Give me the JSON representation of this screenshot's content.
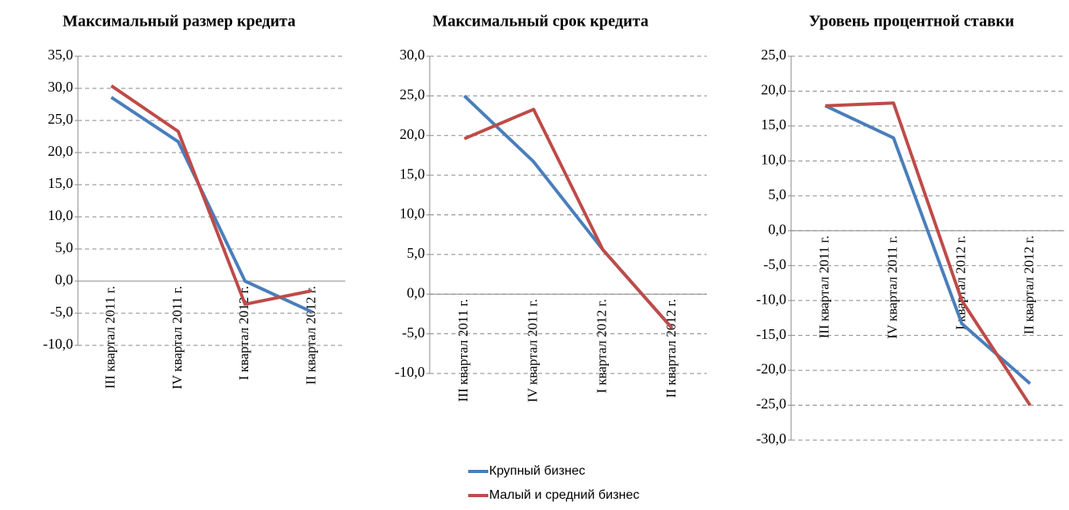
{
  "chart_data": [
    {
      "type": "line",
      "title": "Максимальный размер кредита",
      "categories": [
        "III  квартал 2011 г.",
        "IV квартал 2011 г.",
        "I квартал 2012 г.",
        "II квартал 2012 г."
      ],
      "series": [
        {
          "values": [
            28.6,
            21.7,
            0,
            -4.8
          ]
        },
        {
          "values": [
            30.4,
            23.3,
            -3.6,
            -1.5
          ]
        }
      ],
      "ylim": [
        -10,
        35
      ],
      "yticks": [
        {
          "value": -10,
          "label": "-10,0"
        },
        {
          "value": -5,
          "label": "-5,0"
        },
        {
          "value": 0,
          "label": "0,0"
        },
        {
          "value": 5,
          "label": "5,0"
        },
        {
          "value": 10,
          "label": "10,0"
        },
        {
          "value": 15,
          "label": "15,0"
        },
        {
          "value": 20,
          "label": "20,0"
        },
        {
          "value": 25,
          "label": "25,0"
        },
        {
          "value": 30,
          "label": "30,0"
        },
        {
          "value": 35,
          "label": "35,0"
        }
      ],
      "grid": true
    },
    {
      "type": "line",
      "title": "Максимальный срок кредита",
      "categories": [
        "III  квартал 2011 г.",
        "IV квартал 2011 г.",
        "I квартал 2012 г.",
        "II квартал 2012 г."
      ],
      "series": [
        {
          "values": [
            25.0,
            16.7,
            5.6,
            -4.3
          ]
        },
        {
          "values": [
            19.6,
            23.3,
            5.6,
            -4.3
          ]
        }
      ],
      "ylim": [
        -10,
        30
      ],
      "yticks": [
        {
          "value": -10,
          "label": "-10,0"
        },
        {
          "value": -5,
          "label": "-5,0"
        },
        {
          "value": 0,
          "label": "0,0"
        },
        {
          "value": 5,
          "label": "5,0"
        },
        {
          "value": 10,
          "label": "10,0"
        },
        {
          "value": 15,
          "label": "15,0"
        },
        {
          "value": 20,
          "label": "20,0"
        },
        {
          "value": 25,
          "label": "25,0"
        },
        {
          "value": 30,
          "label": "30,0"
        }
      ],
      "grid": true
    },
    {
      "type": "line",
      "title": "Уровень процентной ставки",
      "categories": [
        "III  квартал 2011 г.",
        "IV квартал 2011 г.",
        "I квартал 2012 г.",
        "II квартал 2012 г."
      ],
      "series": [
        {
          "values": [
            17.9,
            13.3,
            -13.3,
            -21.9
          ]
        },
        {
          "values": [
            17.9,
            18.3,
            -10.0,
            -25.0
          ]
        }
      ],
      "ylim": [
        -30,
        25
      ],
      "yticks": [
        {
          "value": -30,
          "label": "-30,0"
        },
        {
          "value": -25,
          "label": "-25,0"
        },
        {
          "value": -20,
          "label": "-20,0"
        },
        {
          "value": -15,
          "label": "-15,0"
        },
        {
          "value": -10,
          "label": "-10,0"
        },
        {
          "value": -5,
          "label": "-5,0"
        },
        {
          "value": 0,
          "label": "0,0"
        },
        {
          "value": 5,
          "label": "5,0"
        },
        {
          "value": 10,
          "label": "10,0"
        },
        {
          "value": 15,
          "label": "15,0"
        },
        {
          "value": 20,
          "label": "20,0"
        },
        {
          "value": 25,
          "label": "25,0"
        }
      ],
      "grid": true
    }
  ],
  "legend": {
    "series": [
      {
        "name": "Крупный бизнес",
        "color": "#4a7ebb"
      },
      {
        "name": "Малый и средний бизнес",
        "color": "#be4b48"
      }
    ]
  }
}
